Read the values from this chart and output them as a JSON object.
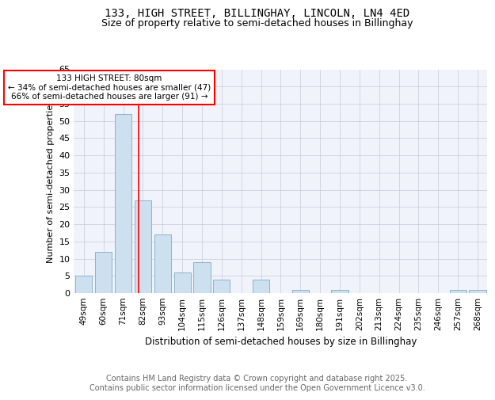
{
  "title1": "133, HIGH STREET, BILLINGHAY, LINCOLN, LN4 4ED",
  "title2": "Size of property relative to semi-detached houses in Billinghay",
  "xlabel": "Distribution of semi-detached houses by size in Billinghay",
  "ylabel": "Number of semi-detached properties",
  "footer1": "Contains HM Land Registry data © Crown copyright and database right 2025.",
  "footer2": "Contains public sector information licensed under the Open Government Licence v3.0.",
  "bins": [
    "49sqm",
    "60sqm",
    "71sqm",
    "82sqm",
    "93sqm",
    "104sqm",
    "115sqm",
    "126sqm",
    "137sqm",
    "148sqm",
    "159sqm",
    "169sqm",
    "180sqm",
    "191sqm",
    "202sqm",
    "213sqm",
    "224sqm",
    "235sqm",
    "246sqm",
    "257sqm",
    "268sqm"
  ],
  "values": [
    5,
    12,
    52,
    27,
    17,
    6,
    9,
    4,
    0,
    4,
    0,
    1,
    0,
    1,
    0,
    0,
    0,
    0,
    0,
    1,
    1
  ],
  "bar_color": "#cce0f0",
  "bar_edge_color": "#8ab4cc",
  "vline_x": 2.78,
  "vline_color": "red",
  "annotation_line1": "133 HIGH STREET: 80sqm",
  "annotation_line2": "← 34% of semi-detached houses are smaller (47)",
  "annotation_line3": "66% of semi-detached houses are larger (91) →",
  "annotation_box_color": "red",
  "annotation_text_color": "black",
  "ylim": [
    0,
    65
  ],
  "yticks": [
    0,
    5,
    10,
    15,
    20,
    25,
    30,
    35,
    40,
    45,
    50,
    55,
    60,
    65
  ],
  "bg_color": "#f0f4fa",
  "grid_color": "#c8c8d8",
  "title1_fontsize": 10,
  "title2_fontsize": 9,
  "footer_fontsize": 7,
  "annot_fontsize": 7.5,
  "ylabel_fontsize": 8,
  "xlabel_fontsize": 8.5
}
